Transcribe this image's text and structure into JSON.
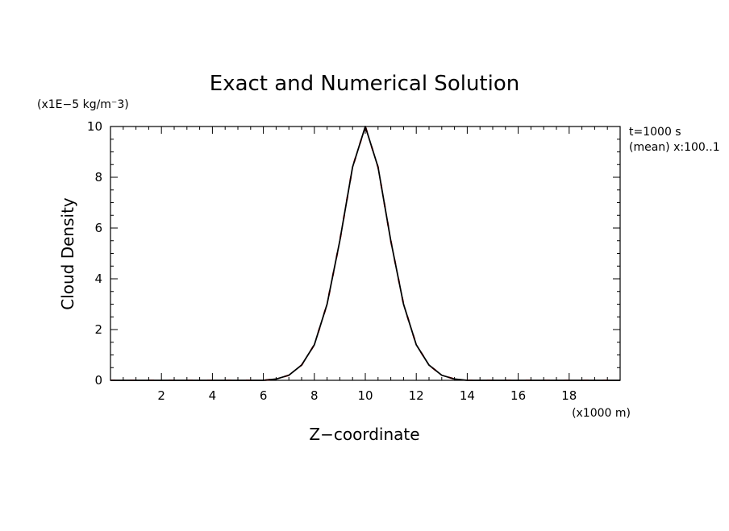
{
  "chart_data": {
    "type": "line",
    "title": "Exact and Numerical Solution",
    "xlabel": "Z−coordinate",
    "ylabel": "Cloud Density",
    "x_unit_label": "(x1000 m)",
    "y_unit_label": "(x1E−5 kg/m⁻3)",
    "annotations": [
      "t=1000 s",
      "(mean) x:100..1"
    ],
    "xlim": [
      0,
      20
    ],
    "ylim": [
      0,
      10
    ],
    "x_ticks": [
      2,
      4,
      6,
      8,
      10,
      12,
      14,
      16,
      18
    ],
    "x_tick_labels": [
      "2",
      "4",
      "6",
      "8",
      "10",
      "12",
      "14",
      "16",
      "18"
    ],
    "y_ticks": [
      0,
      2,
      4,
      6,
      8,
      10
    ],
    "y_tick_labels": [
      "0",
      "2",
      "4",
      "6",
      "8",
      "10"
    ],
    "grid": false,
    "series": [
      {
        "style": "dashed",
        "color": "#ff0000",
        "x": [
          0.0,
          1.0,
          2.0,
          3.0,
          4.0,
          5.0,
          6.0,
          6.5,
          7.0,
          7.5,
          8.0,
          8.5,
          9.0,
          9.5,
          10.0,
          10.5,
          11.0,
          11.5,
          12.0,
          12.5,
          13.0,
          13.5,
          14.0,
          15.0,
          16.0,
          17.0,
          18.0,
          19.0,
          20.0
        ],
        "y": [
          0.0,
          0.0,
          0.0,
          0.0,
          0.0,
          0.0,
          0.0,
          0.05,
          0.2,
          0.6,
          1.4,
          3.0,
          5.5,
          8.4,
          10.0,
          8.4,
          5.5,
          3.0,
          1.4,
          0.6,
          0.2,
          0.05,
          0.0,
          0.0,
          0.0,
          0.0,
          0.0,
          0.0,
          0.0
        ]
      },
      {
        "style": "solid",
        "color": "#000000",
        "x": [
          0.0,
          1.0,
          2.0,
          3.0,
          4.0,
          5.0,
          6.0,
          6.5,
          7.0,
          7.5,
          8.0,
          8.5,
          9.0,
          9.5,
          10.0,
          10.5,
          11.0,
          11.5,
          12.0,
          12.5,
          13.0,
          13.5,
          14.0,
          15.0,
          16.0,
          17.0,
          18.0,
          19.0,
          20.0
        ],
        "y": [
          0.0,
          0.0,
          0.0,
          0.0,
          0.0,
          0.0,
          0.0,
          0.05,
          0.2,
          0.6,
          1.4,
          3.0,
          5.5,
          8.4,
          10.0,
          8.4,
          5.5,
          3.0,
          1.4,
          0.6,
          0.2,
          0.05,
          0.0,
          0.0,
          0.0,
          0.0,
          0.0,
          0.0,
          0.0
        ]
      }
    ]
  }
}
